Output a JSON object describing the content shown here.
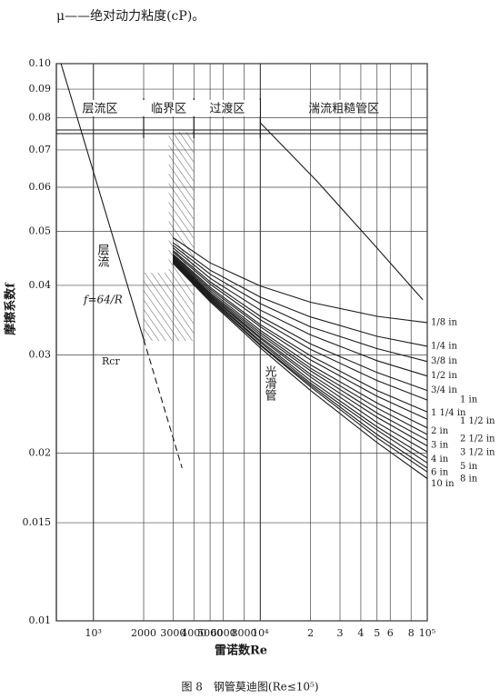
{
  "intro": "μ——绝对动力粘度(cP)。",
  "caption": "图 8　钢管莫迪图(Re≤10⁵)",
  "chart_data": {
    "type": "line",
    "xlabel": "雷诺数Re",
    "ylabel": "摩擦系数f",
    "xscale": "log",
    "yscale": "log",
    "xlim": [
      600,
      100000
    ],
    "ylim": [
      0.01,
      0.1
    ],
    "xticks": [
      {
        "value": 1000,
        "label": "10³"
      },
      2000,
      3000,
      4000,
      5000,
      6000,
      8000,
      {
        "value": 10000,
        "label": "10⁴"
      },
      {
        "value": 20000,
        "label": "2"
      },
      {
        "value": 30000,
        "label": "3"
      },
      {
        "value": 40000,
        "label": "4"
      },
      {
        "value": 50000,
        "label": "5"
      },
      {
        "value": 60000,
        "label": "6"
      },
      {
        "value": 80000,
        "label": "8"
      },
      {
        "value": 100000,
        "label": "10⁵"
      }
    ],
    "yticks": [
      {
        "value": 0.1,
        "label": "0.10"
      },
      0.09,
      0.08,
      0.07,
      0.06,
      0.05,
      0.04,
      0.03,
      0.02,
      0.015,
      0.01
    ],
    "grid": true,
    "color": "#1a1a1a",
    "regions": [
      "层流区",
      "临界区",
      "过渡区",
      "湍流粗糙管区"
    ],
    "region_bounds": [
      2000,
      4000,
      10000
    ],
    "annotations": [
      "f=64/R",
      "Rcr"
    ],
    "series": [
      {
        "name": "1/8 in",
        "x": [
          3000,
          5000,
          10000,
          20000,
          50000,
          100000
        ],
        "values": [
          0.0487,
          0.0439,
          0.0399,
          0.0373,
          0.0352,
          0.0343
        ]
      },
      {
        "name": "1/4 in",
        "x": [
          3000,
          5000,
          10000,
          20000,
          50000,
          100000
        ],
        "values": [
          0.0477,
          0.0426,
          0.0381,
          0.0351,
          0.0324,
          0.0311
        ]
      },
      {
        "name": "3/8 in",
        "x": [
          3000,
          5000,
          10000,
          20000,
          50000,
          100000
        ],
        "values": [
          0.0472,
          0.0419,
          0.0371,
          0.0337,
          0.0308,
          0.0292
        ]
      },
      {
        "name": "1/2 in",
        "x": [
          3000,
          5000,
          10000,
          20000,
          50000,
          100000
        ],
        "values": [
          0.0467,
          0.0412,
          0.0361,
          0.0326,
          0.0293,
          0.0275
        ]
      },
      {
        "name": "3/4 in",
        "x": [
          3000,
          5000,
          10000,
          20000,
          50000,
          100000
        ],
        "values": [
          0.0462,
          0.0406,
          0.0352,
          0.0314,
          0.0279,
          0.0259
        ]
      },
      {
        "name": "1 in",
        "x": [
          3000,
          5000,
          10000,
          20000,
          50000,
          100000
        ],
        "values": [
          0.0459,
          0.0402,
          0.0347,
          0.0307,
          0.027,
          0.0249
        ]
      },
      {
        "name": "1 1/4 in",
        "x": [
          3000,
          5000,
          10000,
          20000,
          50000,
          100000
        ],
        "values": [
          0.0455,
          0.0397,
          0.034,
          0.0299,
          0.0259,
          0.0237
        ]
      },
      {
        "name": "1 1/2 in",
        "x": [
          3000,
          5000,
          10000,
          20000,
          50000,
          100000
        ],
        "values": [
          0.0453,
          0.0394,
          0.0337,
          0.0294,
          0.0253,
          0.023
        ]
      },
      {
        "name": "2 in",
        "x": [
          3000,
          5000,
          10000,
          20000,
          50000,
          100000
        ],
        "values": [
          0.0451,
          0.0391,
          0.0332,
          0.0288,
          0.0246,
          0.0222
        ]
      },
      {
        "name": "2 1/2 in",
        "x": [
          3000,
          5000,
          10000,
          20000,
          50000,
          100000
        ],
        "values": [
          0.0449,
          0.0388,
          0.0329,
          0.0284,
          0.0241,
          0.0216
        ]
      },
      {
        "name": "3 in",
        "x": [
          3000,
          5000,
          10000,
          20000,
          50000,
          100000
        ],
        "values": [
          0.0447,
          0.0386,
          0.0326,
          0.0281,
          0.0236,
          0.0211
        ]
      },
      {
        "name": "3 1/2 in",
        "x": [
          3000,
          5000,
          10000,
          20000,
          50000,
          100000
        ],
        "values": [
          0.0446,
          0.0384,
          0.0323,
          0.0277,
          0.0232,
          0.0206
        ]
      },
      {
        "name": "4 in",
        "x": [
          3000,
          5000,
          10000,
          20000,
          50000,
          100000
        ],
        "values": [
          0.0444,
          0.0382,
          0.0321,
          0.0274,
          0.0227,
          0.0201
        ]
      },
      {
        "name": "5 in",
        "x": [
          3000,
          5000,
          10000,
          20000,
          50000,
          100000
        ],
        "values": [
          0.0443,
          0.038,
          0.0318,
          0.027,
          0.0223,
          0.0196
        ]
      },
      {
        "name": "6 in",
        "x": [
          3000,
          5000,
          10000,
          20000,
          50000,
          100000
        ],
        "values": [
          0.0442,
          0.0379,
          0.0316,
          0.0267,
          0.022,
          0.0192
        ]
      },
      {
        "name": "8 in",
        "x": [
          3000,
          5000,
          10000,
          20000,
          50000,
          100000
        ],
        "values": [
          0.044,
          0.0377,
          0.0313,
          0.0265,
          0.0216,
          0.0188
        ]
      },
      {
        "name": "10 in",
        "x": [
          3000,
          5000,
          10000,
          20000,
          50000,
          100000
        ],
        "values": [
          0.044,
          0.0376,
          0.0312,
          0.0263,
          0.0213,
          0.0185
        ]
      },
      {
        "name": "光滑管",
        "x": [
          3000,
          5000,
          10000,
          20000,
          50000,
          100000
        ],
        "values": [
          0.0438,
          0.0374,
          0.0309,
          0.0259,
          0.0209,
          0.018
        ]
      },
      {
        "name": "层流",
        "x": [
          640,
          2000
        ],
        "values": [
          0.1,
          0.032
        ]
      },
      {
        "x": [
          2000,
          3400
        ],
        "values": [
          0.032,
          0.0188
        ],
        "dash": true
      },
      {
        "x": [
          10000,
          22000,
          46000,
          94000
        ],
        "values": [
          0.0783,
          0.0614,
          0.048,
          0.0377
        ]
      }
    ]
  }
}
